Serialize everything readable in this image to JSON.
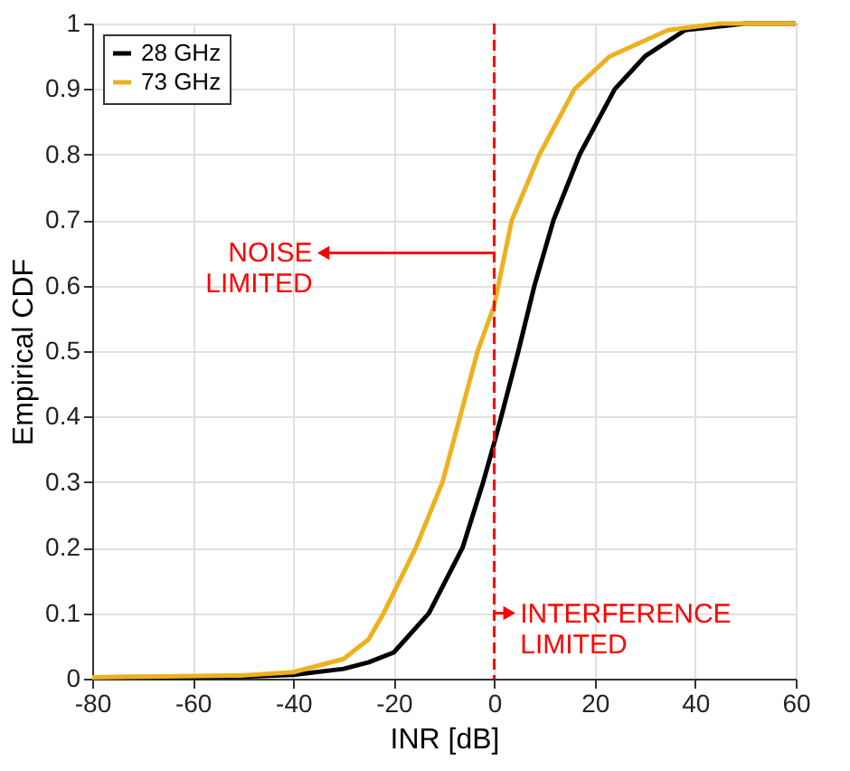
{
  "chart_data": {
    "type": "line",
    "xlabel": "INR [dB]",
    "ylabel": "Empirical CDF",
    "xlim": [
      -80,
      60
    ],
    "xticks": [
      -80,
      -60,
      -40,
      -20,
      0,
      20,
      40,
      60
    ],
    "ylim": [
      0,
      1
    ],
    "yticks": [
      0,
      0.1,
      0.2,
      0.3,
      0.4,
      0.5,
      0.6,
      0.7,
      0.8,
      0.9,
      1
    ],
    "grid": true,
    "legend": "top left",
    "line_style": "solid",
    "marker": "none",
    "series": [
      {
        "name": "28 GHz",
        "color": "#000000",
        "x": [
          -80,
          -50,
          -40,
          -30,
          -25,
          -20,
          -13,
          -6.3,
          -2.2,
          0,
          1.4,
          4.8,
          8,
          11.8,
          17,
          24,
          30,
          38,
          50,
          60
        ],
        "values": [
          0.002,
          0.003,
          0.006,
          0.015,
          0.025,
          0.04,
          0.1,
          0.2,
          0.3,
          0.36,
          0.4,
          0.5,
          0.6,
          0.7,
          0.8,
          0.9,
          0.95,
          0.99,
          1,
          1
        ]
      },
      {
        "name": "73 GHz",
        "color": "#edb120",
        "x": [
          -80,
          -50,
          -40,
          -30,
          -25,
          -22,
          -15.6,
          -10.3,
          -6.8,
          -3.3,
          0,
          3.5,
          9,
          16,
          23,
          34.6,
          45,
          60
        ],
        "values": [
          0.002,
          0.005,
          0.01,
          0.03,
          0.06,
          0.1,
          0.2,
          0.3,
          0.4,
          0.5,
          0.57,
          0.7,
          0.8,
          0.9,
          0.95,
          0.99,
          1,
          1
        ]
      }
    ],
    "ref_lines": [
      {
        "axis": "x",
        "value": 0,
        "color": "#ff0000",
        "line_style": "dashed"
      }
    ],
    "annotations": [
      {
        "text": "NOISE\nLIMITED",
        "x": -34,
        "y": 0.65
      },
      {
        "text": "INTERFERENCE\nLIMITED",
        "x": 3,
        "y": 0.1
      }
    ]
  }
}
